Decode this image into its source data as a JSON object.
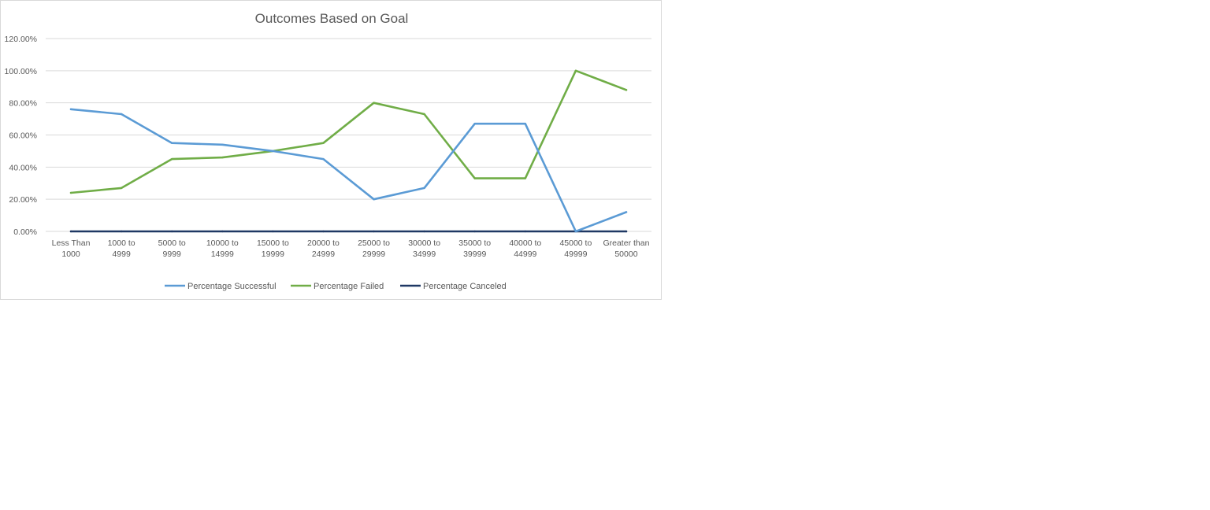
{
  "chart_data": {
    "type": "line",
    "title": "Outcomes Based on Goal",
    "xlabel": "",
    "ylabel": "",
    "categories": [
      [
        "Less Than",
        "1000"
      ],
      [
        "1000 to",
        "4999"
      ],
      [
        "5000 to",
        "9999"
      ],
      [
        "10000 to",
        "14999"
      ],
      [
        "15000 to",
        "19999"
      ],
      [
        "20000 to",
        "24999"
      ],
      [
        "25000 to",
        "29999"
      ],
      [
        "30000 to",
        "34999"
      ],
      [
        "35000 to",
        "39999"
      ],
      [
        "40000 to",
        "44999"
      ],
      [
        "45000 to",
        "49999"
      ],
      [
        "Greater than",
        "50000"
      ]
    ],
    "ylim": [
      0,
      1.2
    ],
    "yticks": [
      0,
      0.2,
      0.4,
      0.6,
      0.8,
      1.0,
      1.2
    ],
    "ytick_labels": [
      "0.00%",
      "20.00%",
      "40.00%",
      "60.00%",
      "80.00%",
      "100.00%",
      "120.00%"
    ],
    "grid": true,
    "legend_position": "bottom",
    "series": [
      {
        "name": "Percentage Successful",
        "color": "#5b9bd5",
        "values": [
          0.76,
          0.73,
          0.55,
          0.54,
          0.5,
          0.45,
          0.2,
          0.27,
          0.67,
          0.67,
          0.0,
          0.12
        ]
      },
      {
        "name": "Percentage Failed",
        "color": "#70ad47",
        "values": [
          0.24,
          0.27,
          0.45,
          0.46,
          0.5,
          0.55,
          0.8,
          0.73,
          0.33,
          0.33,
          1.0,
          0.88
        ]
      },
      {
        "name": "Percentage Canceled",
        "color": "#1f3864",
        "values": [
          0,
          0,
          0,
          0,
          0,
          0,
          0,
          0,
          0,
          0,
          0,
          0
        ]
      }
    ]
  }
}
